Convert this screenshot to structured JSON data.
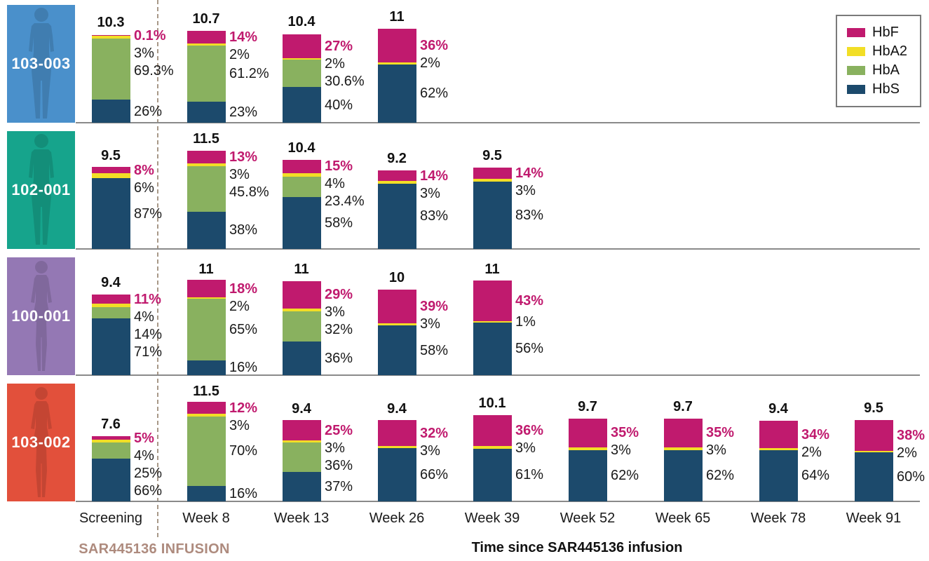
{
  "legend": {
    "items": [
      {
        "key": "HbF",
        "label": "HbF",
        "color": "#C01A6E"
      },
      {
        "key": "HbA2",
        "label": "HbA2",
        "color": "#F2DE26"
      },
      {
        "key": "HbA",
        "label": "HbA",
        "color": "#89B15F"
      },
      {
        "key": "HbS",
        "label": "HbS",
        "color": "#1C4A6C"
      }
    ]
  },
  "footer": {
    "infusion_label": "SAR445136 INFUSION",
    "axis_title": "Time since SAR445136 infusion"
  },
  "colors": {
    "hbf": "#C01A6E",
    "hba2": "#F2DE26",
    "hba": "#89B15F",
    "hbs": "#1C4A6C",
    "axis_line": "#8a8a8a",
    "dashed_line": "#A89888",
    "infusion_text": "#AE8B7E"
  },
  "chart_data": {
    "type": "bar",
    "stacked": true,
    "stack_order_bottom_to_top": [
      "HbS",
      "HbA",
      "HbA2",
      "HbF"
    ],
    "categories": [
      "Screening",
      "Week 8",
      "Week 13",
      "Week 26",
      "Week 39",
      "Week 52",
      "Week 65",
      "Week 78",
      "Week 91"
    ],
    "legend_entries": [
      "HbF",
      "HbA2",
      "HbA",
      "HbS"
    ],
    "patients": [
      {
        "id": "103-003",
        "color": "#4A90CB",
        "silhouette": "male",
        "bars": [
          {
            "category": "Screening",
            "total": 10.3,
            "HbF": 0.1,
            "HbA2": 3,
            "HbA": 69.3,
            "HbS": 26
          },
          {
            "category": "Week 8",
            "total": 10.7,
            "HbF": 14,
            "HbA2": 2,
            "HbA": 61.2,
            "HbS": 23
          },
          {
            "category": "Week 13",
            "total": 10.4,
            "HbF": 27,
            "HbA2": 2,
            "HbA": 30.6,
            "HbS": 40
          },
          {
            "category": "Week 26",
            "total": 11,
            "HbF": 36,
            "HbA2": 2,
            "HbA": null,
            "HbS": 62
          }
        ]
      },
      {
        "id": "102-001",
        "color": "#16A48C",
        "silhouette": "male",
        "bars": [
          {
            "category": "Screening",
            "total": 9.5,
            "HbF": 8,
            "HbA2": 6,
            "HbA": null,
            "HbS": 87
          },
          {
            "category": "Week 8",
            "total": 11.5,
            "HbF": 13,
            "HbA2": 3,
            "HbA": 45.8,
            "HbS": 38
          },
          {
            "category": "Week 13",
            "total": 10.4,
            "HbF": 15,
            "HbA2": 4,
            "HbA": 23.4,
            "HbS": 58
          },
          {
            "category": "Week 26",
            "total": 9.2,
            "HbF": 14,
            "HbA2": 3,
            "HbA": null,
            "HbS": 83
          },
          {
            "category": "Week 39",
            "total": 9.5,
            "HbF": 14,
            "HbA2": 3,
            "HbA": null,
            "HbS": 83
          }
        ]
      },
      {
        "id": "100-001",
        "color": "#9478B4",
        "silhouette": "female",
        "bars": [
          {
            "category": "Screening",
            "total": 9.4,
            "HbF": 11,
            "HbA2": 4,
            "HbA": 14,
            "HbS": 71
          },
          {
            "category": "Week 8",
            "total": 11,
            "HbF": 18,
            "HbA2": 2,
            "HbA": 65,
            "HbS": 16
          },
          {
            "category": "Week 13",
            "total": 11,
            "HbF": 29,
            "HbA2": 3,
            "HbA": 32,
            "HbS": 36
          },
          {
            "category": "Week 26",
            "total": 10,
            "HbF": 39,
            "HbA2": 3,
            "HbA": null,
            "HbS": 58
          },
          {
            "category": "Week 39",
            "total": 11,
            "HbF": 43,
            "HbA2": 1,
            "HbA": null,
            "HbS": 56
          }
        ]
      },
      {
        "id": "103-002",
        "color": "#E2503B",
        "silhouette": "female",
        "bars": [
          {
            "category": "Screening",
            "total": 7.6,
            "HbF": 5,
            "HbA2": 4,
            "HbA": 25,
            "HbS": 66
          },
          {
            "category": "Week 8",
            "total": 11.5,
            "HbF": 12,
            "HbA2": 3,
            "HbA": 70,
            "HbS": 16
          },
          {
            "category": "Week 13",
            "total": 9.4,
            "HbF": 25,
            "HbA2": 3,
            "HbA": 36,
            "HbS": 37
          },
          {
            "category": "Week 26",
            "total": 9.4,
            "HbF": 32,
            "HbA2": 3,
            "HbA": null,
            "HbS": 66
          },
          {
            "category": "Week 39",
            "total": 10.1,
            "HbF": 36,
            "HbA2": 3,
            "HbA": null,
            "HbS": 61
          },
          {
            "category": "Week 52",
            "total": 9.7,
            "HbF": 35,
            "HbA2": 3,
            "HbA": null,
            "HbS": 62
          },
          {
            "category": "Week 65",
            "total": 9.7,
            "HbF": 35,
            "HbA2": 3,
            "HbA": null,
            "HbS": 62
          },
          {
            "category": "Week 78",
            "total": 9.4,
            "HbF": 34,
            "HbA2": 2,
            "HbA": null,
            "HbS": 64
          },
          {
            "category": "Week 91",
            "total": 9.5,
            "HbF": 38,
            "HbA2": 2,
            "HbA": null,
            "HbS": 60
          }
        ]
      }
    ]
  }
}
